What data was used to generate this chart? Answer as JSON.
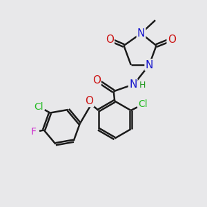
{
  "bg_color": "#e8e8ea",
  "bond_color": "#1a1a1a",
  "bond_width": 1.8,
  "atom_colors": {
    "C": "#1a1a1a",
    "N": "#1515cc",
    "O": "#cc1515",
    "Cl": "#22bb22",
    "F": "#cc22cc",
    "H": "#229922"
  },
  "font_size": 10,
  "fig_size": [
    3.0,
    3.0
  ],
  "dpi": 100
}
